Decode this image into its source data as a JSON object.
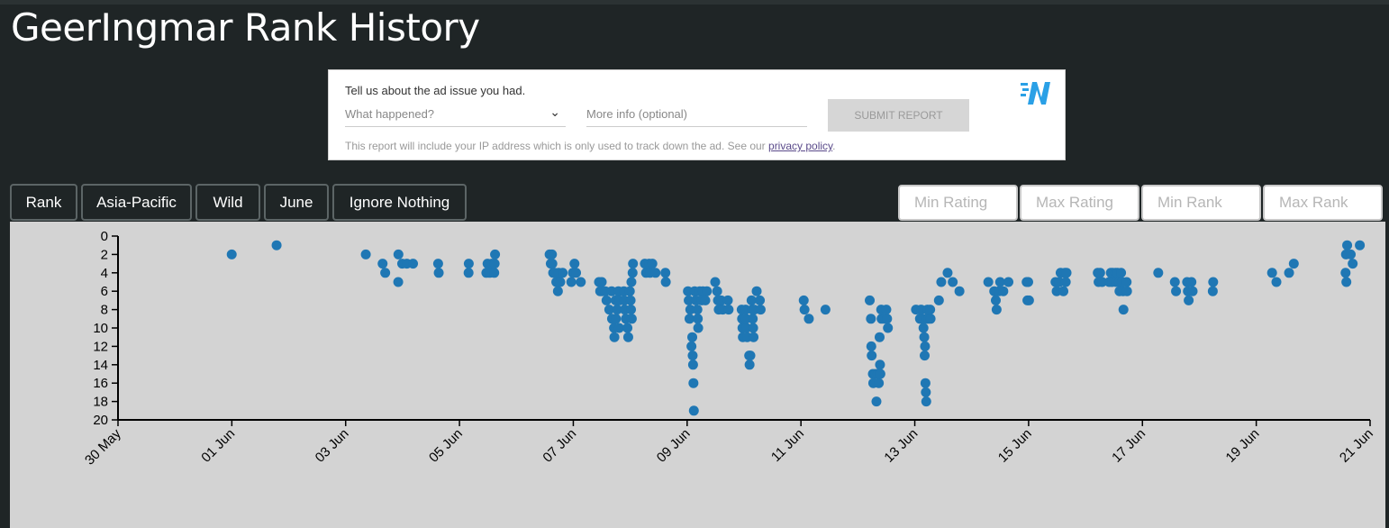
{
  "page": {
    "title": "GeerIngmar Rank History"
  },
  "ad_report": {
    "prompt": "Tell us about the ad issue you had.",
    "select_placeholder": "What happened?",
    "more_info_placeholder": "More info (optional)",
    "submit_label": "SUBMIT REPORT",
    "note_text": "This report will include your IP address which is only used to track down the ad. See our ",
    "privacy_link": "privacy policy",
    "note_end": ".",
    "logo_icon": "brand-logo-icon"
  },
  "filters": {
    "buttons": [
      "Rank",
      "Asia-Pacific",
      "Wild",
      "June",
      "Ignore Nothing"
    ],
    "inputs": [
      "Min Rating",
      "Max Rating",
      "Min Rank",
      "Max Rank"
    ]
  },
  "chart_data": {
    "type": "scatter",
    "title": "",
    "xlabel": "",
    "ylabel": "",
    "color": "#1f77b4",
    "x_ticks": [
      "30 May",
      "01 Jun",
      "03 Jun",
      "05 Jun",
      "07 Jun",
      "09 Jun",
      "11 Jun",
      "13 Jun",
      "15 Jun",
      "17 Jun",
      "19 Jun",
      "21 Jun"
    ],
    "y_ticks": [
      0,
      2,
      4,
      6,
      8,
      10,
      12,
      14,
      16,
      18,
      20
    ],
    "xlim": [
      "2024-05-30",
      "2024-06-21"
    ],
    "ylim": [
      20,
      0
    ],
    "y_inverted": true,
    "points": [
      [
        "2024-05-31T23:57",
        2
      ],
      [
        "2024-06-01T18:53",
        1
      ],
      [
        "2024-06-03T08:30",
        2
      ],
      [
        "2024-06-03T15:35",
        3
      ],
      [
        "2024-06-03T16:41",
        4
      ],
      [
        "2024-06-03T22:15",
        2
      ],
      [
        "2024-06-03T23:50",
        3
      ],
      [
        "2024-06-03T22:10",
        5
      ],
      [
        "2024-06-04T01:48",
        3
      ],
      [
        "2024-06-04T04:25",
        3
      ],
      [
        "2024-06-04T15:00",
        3
      ],
      [
        "2024-06-04T15:15",
        4
      ],
      [
        "2024-06-05T03:55",
        3
      ],
      [
        "2024-06-05T03:50",
        4
      ],
      [
        "2024-06-05T11:20",
        4
      ],
      [
        "2024-06-05T11:50",
        3
      ],
      [
        "2024-06-05T12:45",
        4
      ],
      [
        "2024-06-05T13:40",
        3
      ],
      [
        "2024-06-05T14:40",
        4
      ],
      [
        "2024-06-05T15:00",
        2
      ],
      [
        "2024-06-05T14:50",
        3
      ],
      [
        "2024-06-06T14:00",
        2
      ],
      [
        "2024-06-06T15:00",
        2
      ],
      [
        "2024-06-06T14:30",
        3
      ],
      [
        "2024-06-06T15:10",
        3
      ],
      [
        "2024-06-06T15:30",
        4
      ],
      [
        "2024-06-06T16:10",
        4
      ],
      [
        "2024-06-06T16:50",
        5
      ],
      [
        "2024-06-06T17:30",
        6
      ],
      [
        "2024-06-06T17:50",
        4
      ],
      [
        "2024-06-06T18:30",
        5
      ],
      [
        "2024-06-06T19:30",
        4
      ],
      [
        "2024-06-06T23:10",
        5
      ],
      [
        "2024-06-06T23:50",
        4
      ],
      [
        "2024-06-07T00:30",
        3
      ],
      [
        "2024-06-07T01:10",
        4
      ],
      [
        "2024-06-07T03:10",
        5
      ],
      [
        "2024-06-07T10:50",
        5
      ],
      [
        "2024-06-07T11:20",
        6
      ],
      [
        "2024-06-07T12:00",
        5
      ],
      [
        "2024-06-07T12:10",
        6
      ],
      [
        "2024-06-07T13:30",
        6
      ],
      [
        "2024-06-07T14:00",
        7
      ],
      [
        "2024-06-07T15:10",
        8
      ],
      [
        "2024-06-07T16:10",
        6
      ],
      [
        "2024-06-07T16:20",
        9
      ],
      [
        "2024-06-07T17:10",
        10
      ],
      [
        "2024-06-07T17:20",
        11
      ],
      [
        "2024-06-07T17:50",
        7
      ],
      [
        "2024-06-07T18:00",
        9
      ],
      [
        "2024-06-07T18:30",
        8
      ],
      [
        "2024-06-07T19:00",
        6
      ],
      [
        "2024-06-07T19:20",
        10
      ],
      [
        "2024-06-07T19:30",
        7
      ],
      [
        "2024-06-07T21:20",
        6
      ],
      [
        "2024-06-07T21:30",
        7
      ],
      [
        "2024-06-07T21:40",
        8
      ],
      [
        "2024-06-07T22:10",
        9
      ],
      [
        "2024-06-07T22:50",
        10
      ],
      [
        "2024-06-07T23:10",
        11
      ],
      [
        "2024-06-07T23:50",
        6
      ],
      [
        "2024-06-08T00:10",
        7
      ],
      [
        "2024-06-08T00:20",
        8
      ],
      [
        "2024-06-08T00:30",
        5
      ],
      [
        "2024-06-08T00:40",
        9
      ],
      [
        "2024-06-08T01:00",
        4
      ],
      [
        "2024-06-08T01:10",
        3
      ],
      [
        "2024-06-08T06:10",
        3
      ],
      [
        "2024-06-08T06:40",
        4
      ],
      [
        "2024-06-08T08:00",
        3
      ],
      [
        "2024-06-08T08:20",
        4
      ],
      [
        "2024-06-08T09:20",
        3
      ],
      [
        "2024-06-08T10:40",
        4
      ],
      [
        "2024-06-08T14:50",
        4
      ],
      [
        "2024-06-08T15:00",
        5
      ],
      [
        "2024-06-09T00:20",
        6
      ],
      [
        "2024-06-09T00:40",
        7
      ],
      [
        "2024-06-09T01:00",
        9
      ],
      [
        "2024-06-09T01:20",
        8
      ],
      [
        "2024-06-09T01:50",
        12
      ],
      [
        "2024-06-09T02:10",
        11
      ],
      [
        "2024-06-09T02:20",
        13
      ],
      [
        "2024-06-09T02:30",
        14
      ],
      [
        "2024-06-09T02:40",
        16
      ],
      [
        "2024-06-09T02:50",
        19
      ],
      [
        "2024-06-09T03:10",
        6
      ],
      [
        "2024-06-09T03:40",
        7
      ],
      [
        "2024-06-09T04:30",
        9
      ],
      [
        "2024-06-09T04:20",
        8
      ],
      [
        "2024-06-09T04:40",
        10
      ],
      [
        "2024-06-09T05:20",
        6
      ],
      [
        "2024-06-09T06:10",
        7
      ],
      [
        "2024-06-09T06:40",
        6
      ],
      [
        "2024-06-09T07:40",
        7
      ],
      [
        "2024-06-09T08:20",
        6
      ],
      [
        "2024-06-09T11:50",
        5
      ],
      [
        "2024-06-09T12:40",
        6
      ],
      [
        "2024-06-09T13:00",
        7
      ],
      [
        "2024-06-09T13:20",
        8
      ],
      [
        "2024-06-09T14:20",
        7
      ],
      [
        "2024-06-09T15:00",
        8
      ],
      [
        "2024-06-09T17:10",
        7
      ],
      [
        "2024-06-09T17:30",
        8
      ],
      [
        "2024-06-09T23:00",
        8
      ],
      [
        "2024-06-09T23:10",
        9
      ],
      [
        "2024-06-09T23:20",
        10
      ],
      [
        "2024-06-09T23:30",
        11
      ],
      [
        "2024-06-10T00:40",
        8
      ],
      [
        "2024-06-10T00:50",
        9
      ],
      [
        "2024-06-10T01:00",
        10
      ],
      [
        "2024-06-10T01:20",
        11
      ],
      [
        "2024-06-10T02:10",
        13
      ],
      [
        "2024-06-10T02:20",
        14
      ],
      [
        "2024-06-10T02:40",
        13
      ],
      [
        "2024-06-10T03:10",
        7
      ],
      [
        "2024-06-10T03:30",
        8
      ],
      [
        "2024-06-10T03:40",
        9
      ],
      [
        "2024-06-10T03:50",
        10
      ],
      [
        "2024-06-10T04:00",
        11
      ],
      [
        "2024-06-10T04:20",
        8
      ],
      [
        "2024-06-10T05:20",
        6
      ],
      [
        "2024-06-10T06:40",
        7
      ],
      [
        "2024-06-10T07:00",
        8
      ],
      [
        "2024-06-11T01:10",
        7
      ],
      [
        "2024-06-11T01:30",
        8
      ],
      [
        "2024-06-11T03:20",
        9
      ],
      [
        "2024-06-11T10:20",
        8
      ],
      [
        "2024-06-12T05:00",
        7
      ],
      [
        "2024-06-12T05:30",
        9
      ],
      [
        "2024-06-12T05:40",
        12
      ],
      [
        "2024-06-12T05:50",
        13
      ],
      [
        "2024-06-12T06:20",
        15
      ],
      [
        "2024-06-12T06:30",
        16
      ],
      [
        "2024-06-12T07:30",
        15
      ],
      [
        "2024-06-12T07:50",
        18
      ],
      [
        "2024-06-12T08:20",
        15
      ],
      [
        "2024-06-12T08:50",
        16
      ],
      [
        "2024-06-12T09:10",
        15
      ],
      [
        "2024-06-12T09:20",
        14
      ],
      [
        "2024-06-12T09:10",
        11
      ],
      [
        "2024-06-12T09:30",
        15
      ],
      [
        "2024-06-12T09:50",
        8
      ],
      [
        "2024-06-12T10:00",
        9
      ],
      [
        "2024-06-12T11:10",
        9
      ],
      [
        "2024-06-12T12:00",
        8
      ],
      [
        "2024-06-12T12:20",
        9
      ],
      [
        "2024-06-12T12:40",
        10
      ],
      [
        "2024-06-13T00:30",
        8
      ],
      [
        "2024-06-13T02:10",
        9
      ],
      [
        "2024-06-13T02:40",
        8
      ],
      [
        "2024-06-13T03:20",
        9
      ],
      [
        "2024-06-13T03:40",
        10
      ],
      [
        "2024-06-13T04:00",
        11
      ],
      [
        "2024-06-13T04:20",
        12
      ],
      [
        "2024-06-13T04:10",
        13
      ],
      [
        "2024-06-13T04:30",
        16
      ],
      [
        "2024-06-13T04:40",
        17
      ],
      [
        "2024-06-13T04:50",
        18
      ],
      [
        "2024-06-13T05:00",
        9
      ],
      [
        "2024-06-13T05:20",
        8
      ],
      [
        "2024-06-13T05:40",
        9
      ],
      [
        "2024-06-13T06:30",
        8
      ],
      [
        "2024-06-13T06:40",
        9
      ],
      [
        "2024-06-13T10:10",
        7
      ],
      [
        "2024-06-13T11:10",
        5
      ],
      [
        "2024-06-13T13:50",
        4
      ],
      [
        "2024-06-13T16:00",
        5
      ],
      [
        "2024-06-13T18:50",
        6
      ],
      [
        "2024-06-14T07:00",
        5
      ],
      [
        "2024-06-14T09:30",
        6
      ],
      [
        "2024-06-14T10:10",
        7
      ],
      [
        "2024-06-14T10:30",
        8
      ],
      [
        "2024-06-14T11:30",
        6
      ],
      [
        "2024-06-14T12:00",
        5
      ],
      [
        "2024-06-14T13:20",
        6
      ],
      [
        "2024-06-14T15:30",
        5
      ],
      [
        "2024-06-14T23:10",
        5
      ],
      [
        "2024-06-14T23:30",
        7
      ],
      [
        "2024-06-14T23:50",
        5
      ],
      [
        "2024-06-15T00:10",
        7
      ],
      [
        "2024-06-15T11:20",
        5
      ],
      [
        "2024-06-15T11:50",
        6
      ],
      [
        "2024-06-15T13:00",
        5
      ],
      [
        "2024-06-15T13:30",
        4
      ],
      [
        "2024-06-15T14:40",
        6
      ],
      [
        "2024-06-15T15:20",
        4
      ],
      [
        "2024-06-15T15:40",
        5
      ],
      [
        "2024-06-15T16:00",
        4
      ],
      [
        "2024-06-16T05:10",
        4
      ],
      [
        "2024-06-16T05:30",
        5
      ],
      [
        "2024-06-16T06:10",
        4
      ],
      [
        "2024-06-16T07:00",
        5
      ],
      [
        "2024-06-16T10:00",
        5
      ],
      [
        "2024-06-16T10:40",
        4
      ],
      [
        "2024-06-16T11:10",
        5
      ],
      [
        "2024-06-16T11:30",
        4
      ],
      [
        "2024-06-16T12:40",
        4
      ],
      [
        "2024-06-16T12:50",
        5
      ],
      [
        "2024-06-16T13:30",
        4
      ],
      [
        "2024-06-16T14:10",
        5
      ],
      [
        "2024-06-16T14:20",
        6
      ],
      [
        "2024-06-16T15:00",
        4
      ],
      [
        "2024-06-16T15:20",
        5
      ],
      [
        "2024-06-16T15:50",
        6
      ],
      [
        "2024-06-16T16:00",
        8
      ],
      [
        "2024-06-16T17:20",
        5
      ],
      [
        "2024-06-16T17:30",
        6
      ],
      [
        "2024-06-17T06:40",
        4
      ],
      [
        "2024-06-17T13:40",
        5
      ],
      [
        "2024-06-17T14:10",
        6
      ],
      [
        "2024-06-17T18:50",
        5
      ],
      [
        "2024-06-17T19:10",
        6
      ],
      [
        "2024-06-17T19:30",
        7
      ],
      [
        "2024-06-17T20:40",
        5
      ],
      [
        "2024-06-17T21:10",
        6
      ],
      [
        "2024-06-18T05:50",
        5
      ],
      [
        "2024-06-18T05:40",
        6
      ],
      [
        "2024-06-19T06:40",
        4
      ],
      [
        "2024-06-19T08:30",
        5
      ],
      [
        "2024-06-19T13:50",
        4
      ],
      [
        "2024-06-19T15:50",
        3
      ],
      [
        "2024-06-20T13:40",
        4
      ],
      [
        "2024-06-20T13:50",
        2
      ],
      [
        "2024-06-20T14:00",
        5
      ],
      [
        "2024-06-20T14:20",
        1
      ],
      [
        "2024-06-20T15:50",
        2
      ],
      [
        "2024-06-20T16:40",
        3
      ],
      [
        "2024-06-20T19:40",
        1
      ]
    ]
  }
}
